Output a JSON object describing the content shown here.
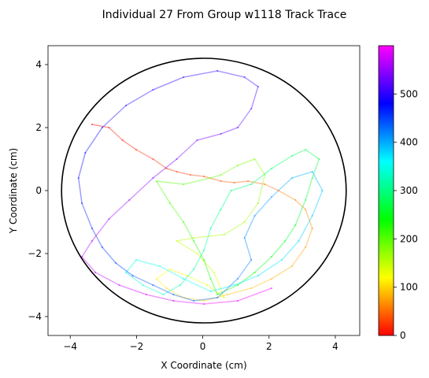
{
  "chart_data": {
    "type": "line",
    "title": "Individual 27 From Group w1118 Track Trace",
    "xlabel": "X Coordinate (cm)",
    "ylabel": "Y Coordinate (cm)",
    "xlim": [
      -4.6,
      4.6
    ],
    "ylim": [
      -4.6,
      4.6
    ],
    "x_ticks": [
      "−4",
      "−2",
      "0",
      "2",
      "4"
    ],
    "y_ticks": [
      "−4",
      "−2",
      "0",
      "2",
      "4"
    ],
    "arena": {
      "center": [
        0,
        0
      ],
      "radius_cm": 4.2,
      "color": "#000000"
    },
    "colorbar": {
      "min": 0,
      "max": 600,
      "ticks": [
        "0",
        "100",
        "200",
        "300",
        "400",
        "500"
      ],
      "colormap": "gist_rainbow_r",
      "stops": [
        "#ff0000",
        "#ffff00",
        "#00ff00",
        "#00ffff",
        "#0000ff",
        "#ff00ff"
      ]
    },
    "track": {
      "alpha": 0.4,
      "points": [
        [
          -3.3,
          2.1,
          0
        ],
        [
          -2.8,
          2.0,
          5
        ],
        [
          -2.4,
          1.6,
          10
        ],
        [
          -2.0,
          1.3,
          14
        ],
        [
          -1.5,
          1.0,
          18
        ],
        [
          -1.1,
          0.7,
          22
        ],
        [
          -0.8,
          0.6,
          26
        ],
        [
          -0.4,
          0.5,
          30
        ],
        [
          0.0,
          0.45,
          34
        ],
        [
          0.5,
          0.3,
          38
        ],
        [
          0.9,
          0.25,
          42
        ],
        [
          1.3,
          0.3,
          46
        ],
        [
          1.8,
          0.2,
          50
        ],
        [
          2.2,
          0.0,
          55
        ],
        [
          2.7,
          -0.3,
          60
        ],
        [
          3.0,
          -0.6,
          65
        ],
        [
          3.2,
          -1.2,
          70
        ],
        [
          3.0,
          -1.8,
          75
        ],
        [
          2.6,
          -2.4,
          80
        ],
        [
          2.0,
          -2.8,
          85
        ],
        [
          1.4,
          -3.1,
          90
        ],
        [
          0.7,
          -3.3,
          95
        ],
        [
          0.0,
          -3.5,
          100
        ],
        [
          -0.6,
          -3.4,
          105
        ],
        [
          -1.1,
          -3.1,
          110
        ],
        [
          -1.4,
          -2.8,
          115
        ],
        [
          -1.0,
          -2.5,
          120
        ],
        [
          -0.5,
          -2.7,
          125
        ],
        [
          0.1,
          -3.0,
          130
        ],
        [
          0.6,
          -3.4,
          135
        ],
        [
          0.3,
          -2.6,
          140
        ],
        [
          -0.2,
          -2.0,
          145
        ],
        [
          -0.8,
          -1.6,
          150
        ],
        [
          -0.3,
          -1.5,
          155
        ],
        [
          0.6,
          -1.4,
          160
        ],
        [
          1.2,
          -1.0,
          165
        ],
        [
          1.6,
          -0.4,
          170
        ],
        [
          1.8,
          0.5,
          175
        ],
        [
          1.5,
          1.0,
          180
        ],
        [
          1.0,
          0.8,
          185
        ],
        [
          0.5,
          0.5,
          190
        ],
        [
          0.2,
          0.4,
          195
        ],
        [
          -0.6,
          0.2,
          200
        ],
        [
          -1.4,
          0.3,
          205
        ],
        [
          -1.0,
          -0.4,
          210
        ],
        [
          -0.6,
          -1.0,
          215
        ],
        [
          -0.3,
          -1.6,
          220
        ],
        [
          0.0,
          -2.2,
          225
        ],
        [
          0.2,
          -2.8,
          230
        ],
        [
          0.4,
          -3.3,
          235
        ],
        [
          1.0,
          -3.0,
          240
        ],
        [
          1.5,
          -2.6,
          245
        ],
        [
          2.0,
          -2.1,
          250
        ],
        [
          2.4,
          -1.6,
          255
        ],
        [
          2.7,
          -1.1,
          260
        ],
        [
          3.0,
          -0.3,
          265
        ],
        [
          3.2,
          0.4,
          270
        ],
        [
          3.4,
          1.0,
          275
        ],
        [
          3.0,
          1.3,
          280
        ],
        [
          2.6,
          1.1,
          285
        ],
        [
          2.0,
          0.7,
          290
        ],
        [
          1.4,
          0.2,
          295
        ],
        [
          0.8,
          0.0,
          300
        ],
        [
          0.5,
          -0.6,
          305
        ],
        [
          0.2,
          -1.2,
          310
        ],
        [
          0.0,
          -1.9,
          315
        ],
        [
          -0.3,
          -2.5,
          320
        ],
        [
          -0.7,
          -3.0,
          325
        ],
        [
          -1.2,
          -3.3,
          330
        ],
        [
          -1.8,
          -3.0,
          335
        ],
        [
          -2.3,
          -2.6,
          340
        ],
        [
          -2.0,
          -2.2,
          345
        ],
        [
          -1.3,
          -2.4,
          350
        ],
        [
          -0.6,
          -2.8,
          355
        ],
        [
          0.2,
          -3.2,
          360
        ],
        [
          0.9,
          -3.0,
          365
        ],
        [
          1.6,
          -2.7,
          370
        ],
        [
          2.3,
          -2.2,
          375
        ],
        [
          2.8,
          -1.6,
          380
        ],
        [
          3.2,
          -0.8,
          385
        ],
        [
          3.5,
          0.0,
          390
        ],
        [
          3.2,
          0.6,
          395
        ],
        [
          2.6,
          0.4,
          400
        ],
        [
          2.0,
          -0.2,
          405
        ],
        [
          1.5,
          -0.8,
          410
        ],
        [
          1.2,
          -1.5,
          415
        ],
        [
          1.4,
          -2.2,
          420
        ],
        [
          1.0,
          -2.8,
          425
        ],
        [
          0.4,
          -3.4,
          430
        ],
        [
          -0.3,
          -3.5,
          435
        ],
        [
          -0.9,
          -3.3,
          440
        ],
        [
          -1.5,
          -3.0,
          445
        ],
        [
          -2.1,
          -2.7,
          450
        ],
        [
          -2.6,
          -2.3,
          455
        ],
        [
          -3.0,
          -1.8,
          460
        ],
        [
          -3.3,
          -1.2,
          465
        ],
        [
          -3.6,
          -0.4,
          470
        ],
        [
          -3.7,
          0.4,
          475
        ],
        [
          -3.5,
          1.2,
          480
        ],
        [
          -3.0,
          2.0,
          485
        ],
        [
          -2.3,
          2.7,
          490
        ],
        [
          -1.5,
          3.2,
          495
        ],
        [
          -0.6,
          3.6,
          500
        ],
        [
          0.4,
          3.8,
          505
        ],
        [
          1.2,
          3.6,
          510
        ],
        [
          1.6,
          3.3,
          515
        ],
        [
          1.4,
          2.6,
          520
        ],
        [
          1.0,
          2.0,
          525
        ],
        [
          0.5,
          1.8,
          530
        ],
        [
          -0.2,
          1.6,
          535
        ],
        [
          -0.8,
          1.0,
          540
        ],
        [
          -1.5,
          0.4,
          545
        ],
        [
          -2.2,
          -0.3,
          550
        ],
        [
          -2.8,
          -0.9,
          555
        ],
        [
          -3.3,
          -1.6,
          560
        ],
        [
          -3.6,
          -2.1,
          565
        ],
        [
          -3.2,
          -2.6,
          570
        ],
        [
          -2.5,
          -3.0,
          575
        ],
        [
          -1.7,
          -3.3,
          580
        ],
        [
          -0.9,
          -3.5,
          585
        ],
        [
          0.0,
          -3.6,
          590
        ],
        [
          1.0,
          -3.5,
          595
        ],
        [
          2.0,
          -3.1,
          600
        ]
      ]
    }
  }
}
